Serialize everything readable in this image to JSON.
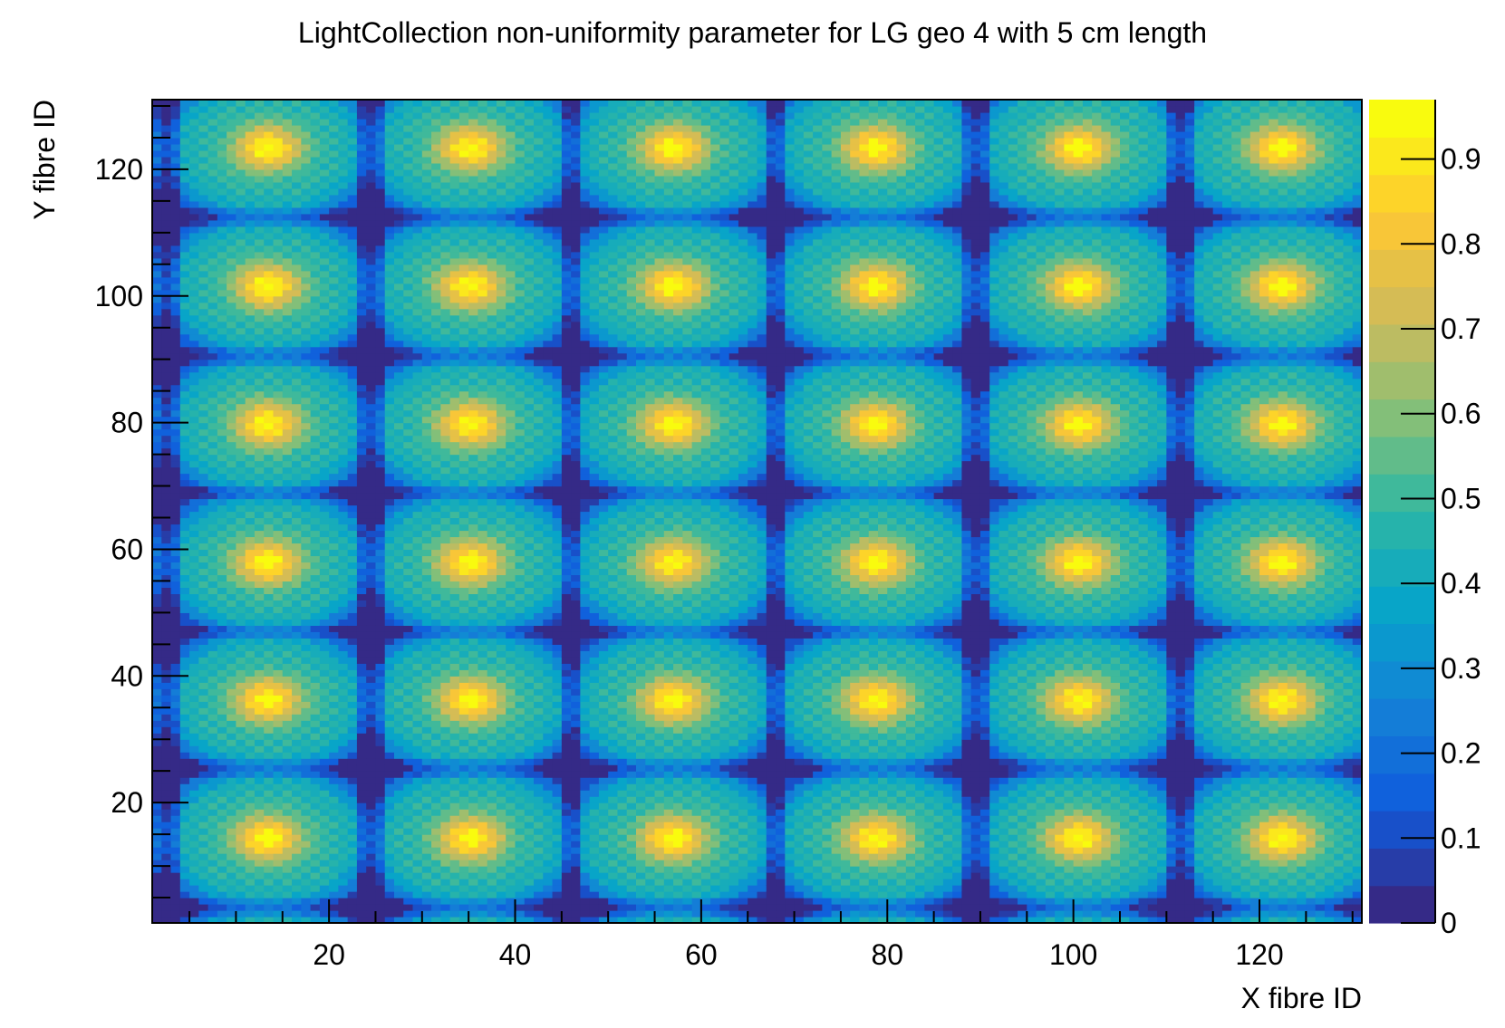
{
  "chart_data": {
    "type": "heatmap",
    "title": "LightCollection non-uniformity parameter for LG geo 4 with 5 cm length",
    "xlabel": "X fibre ID",
    "ylabel": "Y fibre ID",
    "xlim": [
      1,
      131
    ],
    "ylim": [
      1,
      131
    ],
    "zlim": [
      0,
      0.97
    ],
    "x_ticks": [
      20,
      40,
      60,
      80,
      100,
      120
    ],
    "y_ticks": [
      20,
      40,
      60,
      80,
      100,
      120
    ],
    "z_ticks": [
      0,
      0.1,
      0.2,
      0.3,
      0.4,
      0.5,
      0.6,
      0.7,
      0.8,
      0.9
    ],
    "colorscale": [
      "#352a87",
      "#0f5cdd",
      "#1481d6",
      "#06a4ca",
      "#2eb7a4",
      "#87bf77",
      "#d1bb59",
      "#fec832",
      "#f9fb0e"
    ],
    "pattern": {
      "period_x": 21.8,
      "period_y": 21.8,
      "description_values": {
        "max_bright_cells": 0.97,
        "min_dark_cells": 0.2
      }
    }
  }
}
